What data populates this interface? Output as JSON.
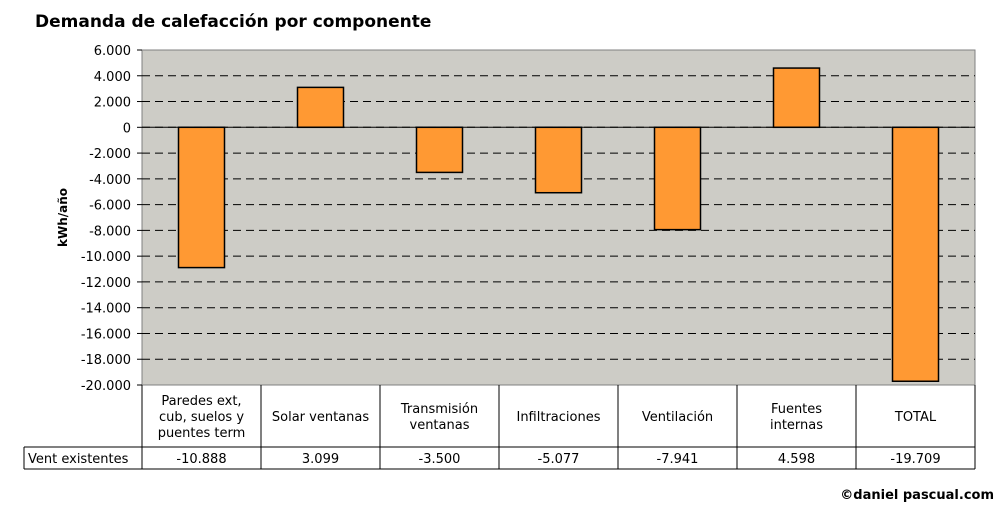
{
  "chart_data": {
    "type": "bar",
    "title": "Demanda de calefacción por componente",
    "ylabel": "kWh/año",
    "xlabel": "",
    "ylim": [
      -20000,
      6000
    ],
    "ytick_step": 2000,
    "grid": true,
    "categories": [
      [
        "Paredes ext,",
        "cub, suelos y",
        "puentes term"
      ],
      [
        "Solar ventanas"
      ],
      [
        "Transmisión",
        "ventanas"
      ],
      [
        "Infiltraciones"
      ],
      [
        "Ventilación"
      ],
      [
        "Fuentes",
        "internas"
      ],
      [
        "TOTAL"
      ]
    ],
    "series": [
      {
        "name": "Vent existentes",
        "values": [
          -10888,
          3099,
          -3500,
          -5077,
          -7941,
          4598,
          -19709
        ],
        "labels": [
          "-10.888",
          "3.099",
          "-3.500",
          "-5.077",
          "-7.941",
          "4.598",
          "-19.709"
        ]
      }
    ],
    "colors": {
      "plot_bg": "#cdccc6",
      "bar": "#ff9933",
      "bar_stroke": "#000000"
    }
  },
  "footer": {
    "copyright": "©daniel pascual.com"
  }
}
